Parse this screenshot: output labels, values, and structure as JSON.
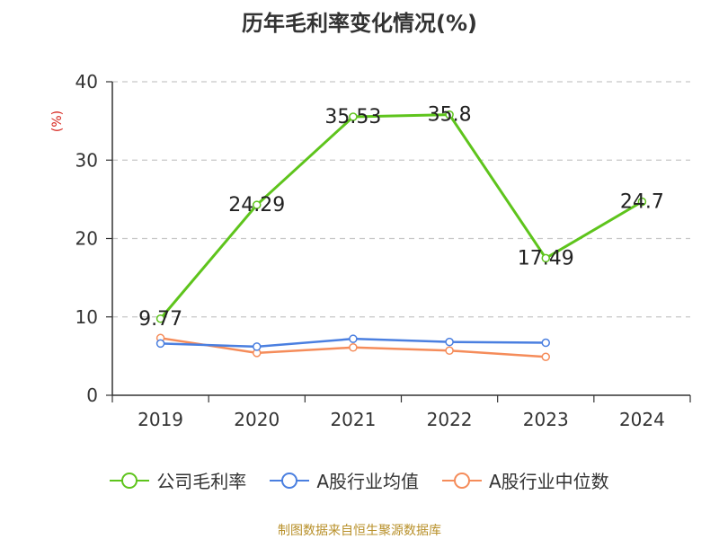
{
  "chart_data": {
    "type": "line",
    "title": "历年毛利率变化情况(%)",
    "ylabel": "(%)",
    "categories": [
      "2019",
      "2020",
      "2021",
      "2022",
      "2023",
      "2024"
    ],
    "ylim": [
      0,
      40
    ],
    "yticks": [
      0,
      10,
      20,
      30,
      40
    ],
    "grid": true,
    "legend_position": "bottom",
    "series": [
      {
        "name": "公司毛利率",
        "color": "#5ec41c",
        "values": [
          9.77,
          24.29,
          35.53,
          35.8,
          17.49,
          24.7
        ],
        "labels": [
          "9.77",
          "24.29",
          "35.53",
          "35.8",
          "17.49",
          "24.7"
        ]
      },
      {
        "name": "A股行业均值",
        "color": "#4a7fe0",
        "values": [
          6.6,
          6.2,
          7.2,
          6.8,
          6.7,
          null
        ],
        "labels": []
      },
      {
        "name": "A股行业中位数",
        "color": "#f58c5a",
        "values": [
          7.3,
          5.4,
          6.1,
          5.7,
          4.9,
          null
        ],
        "labels": []
      }
    ]
  },
  "source_text": "制图数据来自恒生聚源数据库"
}
